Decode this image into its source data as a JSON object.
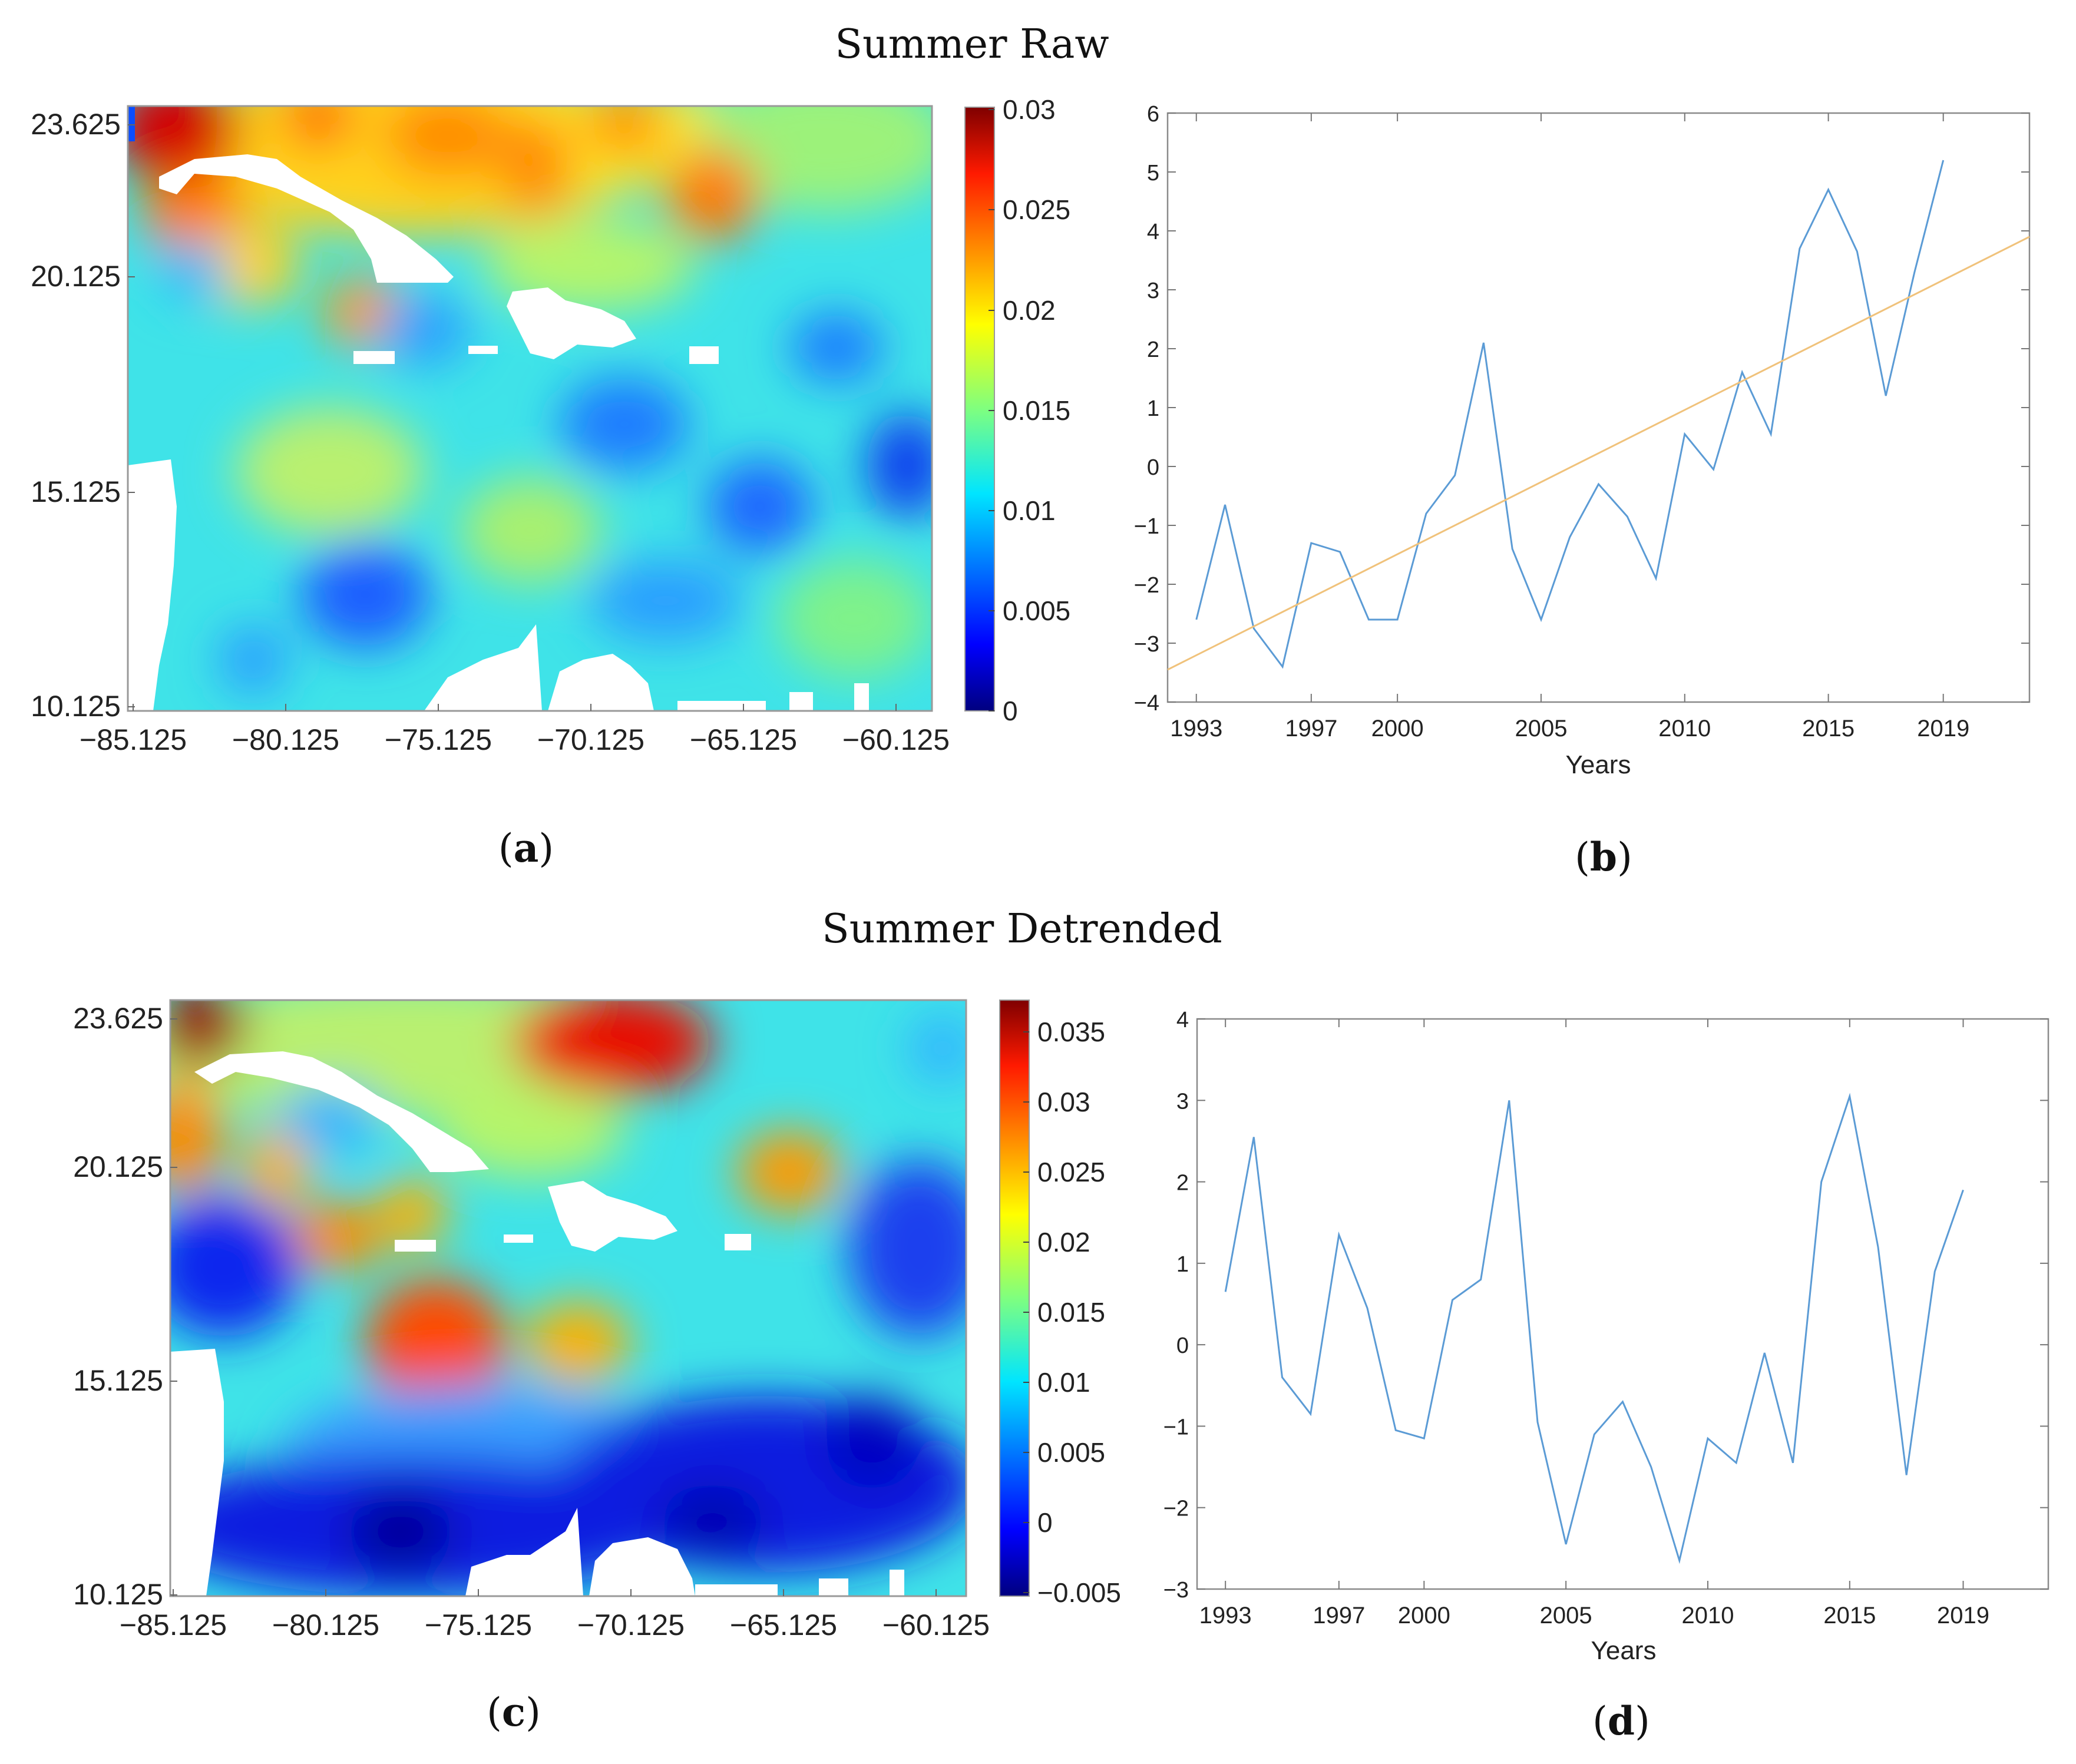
{
  "figure": {
    "title_top": "Summer Raw",
    "title_bottom": "Summer Detrended",
    "labels": {
      "a": "a",
      "b": "b",
      "c": "c",
      "d": "d"
    }
  },
  "chart_data": [
    {
      "id": "a",
      "type": "heatmap",
      "xticks": [
        "−85.125",
        "−80.125",
        "−75.125",
        "−70.125",
        "−65.125",
        "−60.125"
      ],
      "yticks": [
        "23.625",
        "20.125",
        "15.125",
        "10.125"
      ],
      "xlim": [
        -85.125,
        -59.125
      ],
      "ylim": [
        10.125,
        24.125
      ],
      "colorbar": {
        "min": 0,
        "max": 0.03,
        "ticks": [
          "0.03",
          "0.025",
          "0.02",
          "0.015",
          "0.01",
          "0.005",
          "0"
        ]
      },
      "colormap": "jet"
    },
    {
      "id": "b",
      "type": "line",
      "x": [
        1993,
        1994,
        1995,
        1996,
        1997,
        1998,
        1999,
        2000,
        2001,
        2002,
        2003,
        2004,
        2005,
        2006,
        2007,
        2008,
        2009,
        2010,
        2011,
        2012,
        2013,
        2014,
        2015,
        2016,
        2017,
        2018,
        2019
      ],
      "series": [
        {
          "values": [
            -2.6,
            -0.65,
            -2.75,
            -3.4,
            -1.3,
            -1.45,
            -2.6,
            -2.6,
            -0.8,
            -0.15,
            2.1,
            -1.4,
            -2.6,
            -1.2,
            -0.3,
            -0.85,
            -1.9,
            0.55,
            -0.05,
            1.6,
            0.55,
            3.7,
            4.7,
            3.65,
            1.2,
            3.3,
            5.2
          ],
          "color": "#5b9bd5"
        },
        {
          "values": [
            -3.45,
            3.9
          ],
          "x": [
            1992,
            2022
          ],
          "color": "#f0c27b"
        }
      ],
      "xticks": [
        "1993",
        "1997",
        "2000",
        "2005",
        "2010",
        "2015",
        "2019"
      ],
      "yticks": [
        "6",
        "5",
        "4",
        "3",
        "2",
        "1",
        "0",
        "−1",
        "−2",
        "−3",
        "−4"
      ],
      "xlabel": "Years",
      "xlim": [
        1992,
        2022
      ],
      "ylim": [
        -4,
        6
      ]
    },
    {
      "id": "c",
      "type": "heatmap",
      "xticks": [
        "−85.125",
        "−80.125",
        "−75.125",
        "−70.125",
        "−65.125",
        "−60.125"
      ],
      "yticks": [
        "23.625",
        "20.125",
        "15.125",
        "10.125"
      ],
      "xlim": [
        -85.125,
        -59.125
      ],
      "ylim": [
        10.125,
        24.125
      ],
      "colorbar": {
        "min": -0.005,
        "max": 0.037,
        "ticks": [
          "0.035",
          "0.03",
          "0.025",
          "0.02",
          "0.015",
          "0.01",
          "0.005",
          "0",
          "−0.005"
        ]
      },
      "colormap": "jet"
    },
    {
      "id": "d",
      "type": "line",
      "x": [
        1993,
        1994,
        1995,
        1996,
        1997,
        1998,
        1999,
        2000,
        2001,
        2002,
        2003,
        2004,
        2005,
        2006,
        2007,
        2008,
        2009,
        2010,
        2011,
        2012,
        2013,
        2014,
        2015,
        2016,
        2017,
        2018,
        2019
      ],
      "series": [
        {
          "values": [
            0.65,
            2.55,
            -0.4,
            -0.85,
            1.35,
            0.45,
            -1.05,
            -1.15,
            0.55,
            0.8,
            3.0,
            -0.95,
            -2.45,
            -1.1,
            -0.7,
            -1.5,
            -2.65,
            -1.15,
            -1.45,
            -0.1,
            -1.45,
            2.0,
            3.05,
            1.2,
            -1.6,
            0.9,
            1.9
          ],
          "color": "#5b9bd5"
        }
      ],
      "xticks": [
        "1993",
        "1997",
        "2000",
        "2005",
        "2010",
        "2015",
        "2019"
      ],
      "yticks": [
        "4",
        "3",
        "2",
        "1",
        "0",
        "−1",
        "−2",
        "−3"
      ],
      "xlabel": "Years",
      "xlim": [
        1992,
        2022
      ],
      "ylim": [
        -3,
        4
      ]
    }
  ]
}
